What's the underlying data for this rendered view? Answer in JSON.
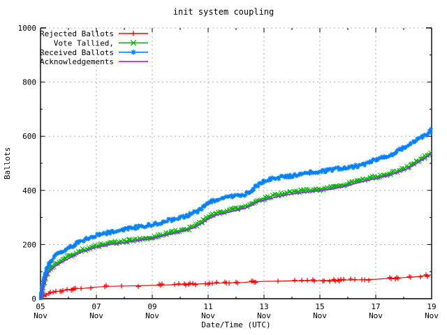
{
  "chart_data": {
    "type": "line",
    "title": "init system coupling",
    "xlabel": "Date/Time (UTC)",
    "ylabel": "Ballots",
    "xlim": [
      5,
      19
    ],
    "ylim": [
      0,
      1000
    ],
    "grid": true,
    "legend_position": "top-left",
    "x_axis": {
      "unit": "day of November (UTC)",
      "major_ticks": [
        5,
        7,
        9,
        11,
        13,
        15,
        17,
        19
      ],
      "minor_step": 1,
      "tick_labels": [
        [
          "05",
          "Nov"
        ],
        [
          "07",
          "Nov"
        ],
        [
          "09",
          "Nov"
        ],
        [
          "11",
          "Nov"
        ],
        [
          "13",
          "Nov"
        ],
        [
          "15",
          "Nov"
        ],
        [
          "17",
          "Nov"
        ],
        [
          "19",
          "Nov"
        ]
      ]
    },
    "y_axis": {
      "major_ticks": [
        0,
        200,
        400,
        600,
        800,
        1000
      ],
      "minor_step": 100,
      "tick_labels": [
        "0",
        "200",
        "400",
        "600",
        "800",
        "1000"
      ]
    },
    "grid_color": "#b0b0b0",
    "series": [
      {
        "name": "Rejected Ballots",
        "color": "#ff0000",
        "marker": "plus",
        "style": "linespoints",
        "points": [
          [
            5,
            0
          ],
          [
            5.1,
            10
          ],
          [
            5.2,
            16
          ],
          [
            5.35,
            22
          ],
          [
            5.5,
            25
          ],
          [
            5.8,
            30
          ],
          [
            6,
            33
          ],
          [
            6.2,
            36
          ],
          [
            6.5,
            38
          ],
          [
            7,
            43
          ],
          [
            7.5,
            46
          ],
          [
            8,
            47
          ],
          [
            8.5,
            48
          ],
          [
            9,
            49
          ],
          [
            9.5,
            51
          ],
          [
            10,
            52
          ],
          [
            10.5,
            54
          ],
          [
            11,
            56
          ],
          [
            11.5,
            58
          ],
          [
            12,
            59
          ],
          [
            12.3,
            60
          ],
          [
            12.55,
            63
          ],
          [
            13,
            64
          ],
          [
            13.5,
            65
          ],
          [
            14,
            66
          ],
          [
            15,
            67
          ],
          [
            15.5,
            68
          ],
          [
            16,
            69
          ],
          [
            16.5,
            70
          ],
          [
            17,
            72
          ],
          [
            17.5,
            75
          ],
          [
            18,
            78
          ],
          [
            18.3,
            80
          ],
          [
            18.6,
            83
          ],
          [
            18.85,
            86
          ],
          [
            19,
            88
          ]
        ],
        "marker_days": [
          5.1,
          5.15,
          5.2,
          5.3,
          5.35,
          5.45,
          5.55,
          5.7,
          5.75,
          5.8,
          5.95,
          6.1,
          6.15,
          6.2,
          6.25,
          6.45,
          6.8,
          7.3,
          7.35,
          7.9,
          8.5,
          9.25,
          9.3,
          9.35,
          9.8,
          9.95,
          10.15,
          10.2,
          10.3,
          10.35,
          10.45,
          10.55,
          10.9,
          11.0,
          11.05,
          11.15,
          11.3,
          11.6,
          11.65,
          11.75,
          12.0,
          12.05,
          12.55,
          12.6,
          12.65,
          12.7,
          13.5,
          14.1,
          14.35,
          14.55,
          14.75,
          14.8,
          15.1,
          15.15,
          15.35,
          15.5,
          15.55,
          15.65,
          15.7,
          15.75,
          15.85,
          16.1,
          16.25,
          16.5,
          16.6,
          16.75,
          17.5,
          17.55,
          17.7,
          17.75,
          17.8,
          18.2,
          18.25,
          18.6,
          18.8,
          18.85
        ]
      },
      {
        "name": "Vote Tallied,",
        "color": "#00b400",
        "marker": "cross",
        "style": "dense-scatter",
        "points": [
          [
            5,
            0
          ],
          [
            5.05,
            25
          ],
          [
            5.1,
            50
          ],
          [
            5.2,
            85
          ],
          [
            5.3,
            105
          ],
          [
            5.5,
            124
          ],
          [
            5.75,
            140
          ],
          [
            6,
            155
          ],
          [
            6.25,
            168
          ],
          [
            6.5,
            180
          ],
          [
            7,
            195
          ],
          [
            7.5,
            205
          ],
          [
            8,
            212
          ],
          [
            8.5,
            220
          ],
          [
            9,
            228
          ],
          [
            9.5,
            240
          ],
          [
            10,
            252
          ],
          [
            10.3,
            258
          ],
          [
            10.6,
            272
          ],
          [
            10.85,
            290
          ],
          [
            11,
            300
          ],
          [
            11.3,
            315
          ],
          [
            11.6,
            322
          ],
          [
            12,
            332
          ],
          [
            12.3,
            340
          ],
          [
            12.5,
            348
          ],
          [
            12.7,
            360
          ],
          [
            12.9,
            368
          ],
          [
            13,
            370
          ],
          [
            13.3,
            380
          ],
          [
            13.6,
            386
          ],
          [
            14,
            393
          ],
          [
            14.5,
            399
          ],
          [
            15,
            404
          ],
          [
            15.5,
            412
          ],
          [
            16,
            424
          ],
          [
            16.5,
            438
          ],
          [
            17,
            450
          ],
          [
            17.3,
            456
          ],
          [
            17.6,
            465
          ],
          [
            18,
            480
          ],
          [
            18.3,
            495
          ],
          [
            18.6,
            515
          ],
          [
            18.8,
            527
          ],
          [
            19,
            542
          ]
        ]
      },
      {
        "name": "Received Ballots",
        "color": "#0080ff",
        "marker": "asterisk",
        "style": "dense-scatter",
        "points": [
          [
            5,
            0
          ],
          [
            5.05,
            30
          ],
          [
            5.1,
            60
          ],
          [
            5.2,
            105
          ],
          [
            5.3,
            130
          ],
          [
            5.5,
            155
          ],
          [
            5.75,
            172
          ],
          [
            6,
            188
          ],
          [
            6.25,
            202
          ],
          [
            6.5,
            214
          ],
          [
            7,
            235
          ],
          [
            7.5,
            246
          ],
          [
            8,
            255
          ],
          [
            8.5,
            265
          ],
          [
            9,
            274
          ],
          [
            9.5,
            287
          ],
          [
            10,
            300
          ],
          [
            10.3,
            308
          ],
          [
            10.6,
            322
          ],
          [
            10.85,
            340
          ],
          [
            11,
            352
          ],
          [
            11.3,
            366
          ],
          [
            11.6,
            373
          ],
          [
            12,
            380
          ],
          [
            12.3,
            385
          ],
          [
            12.5,
            394
          ],
          [
            12.7,
            413
          ],
          [
            12.9,
            428
          ],
          [
            13,
            434
          ],
          [
            13.3,
            442
          ],
          [
            13.6,
            448
          ],
          [
            14,
            454
          ],
          [
            14.5,
            463
          ],
          [
            15,
            470
          ],
          [
            15.5,
            478
          ],
          [
            16,
            485
          ],
          [
            16.5,
            492
          ],
          [
            17,
            513
          ],
          [
            17.3,
            523
          ],
          [
            17.6,
            533
          ],
          [
            18,
            560
          ],
          [
            18.3,
            576
          ],
          [
            18.6,
            593
          ],
          [
            18.8,
            606
          ],
          [
            19,
            622
          ]
        ]
      },
      {
        "name": "Acknowledgements",
        "color": "#a020f0",
        "marker": "none",
        "style": "line",
        "points": [
          [
            5,
            0
          ],
          [
            5.1,
            45
          ],
          [
            5.2,
            78
          ],
          [
            5.3,
            98
          ],
          [
            5.5,
            118
          ],
          [
            5.75,
            134
          ],
          [
            6,
            148
          ],
          [
            6.5,
            174
          ],
          [
            7,
            190
          ],
          [
            7.5,
            200
          ],
          [
            8,
            207
          ],
          [
            8.5,
            215
          ],
          [
            9,
            223
          ],
          [
            9.5,
            235
          ],
          [
            10,
            247
          ],
          [
            10.5,
            262
          ],
          [
            10.85,
            283
          ],
          [
            11,
            294
          ],
          [
            11.3,
            309
          ],
          [
            11.6,
            316
          ],
          [
            12,
            326
          ],
          [
            12.3,
            334
          ],
          [
            12.5,
            342
          ],
          [
            12.7,
            354
          ],
          [
            12.9,
            362
          ],
          [
            13,
            364
          ],
          [
            13.5,
            377
          ],
          [
            14,
            387
          ],
          [
            14.5,
            393
          ],
          [
            15,
            399
          ],
          [
            15.5,
            406
          ],
          [
            16,
            418
          ],
          [
            16.5,
            432
          ],
          [
            17,
            444
          ],
          [
            17.5,
            456
          ],
          [
            18,
            474
          ],
          [
            18.3,
            489
          ],
          [
            18.6,
            509
          ],
          [
            18.8,
            521
          ],
          [
            19,
            537
          ]
        ]
      }
    ]
  }
}
